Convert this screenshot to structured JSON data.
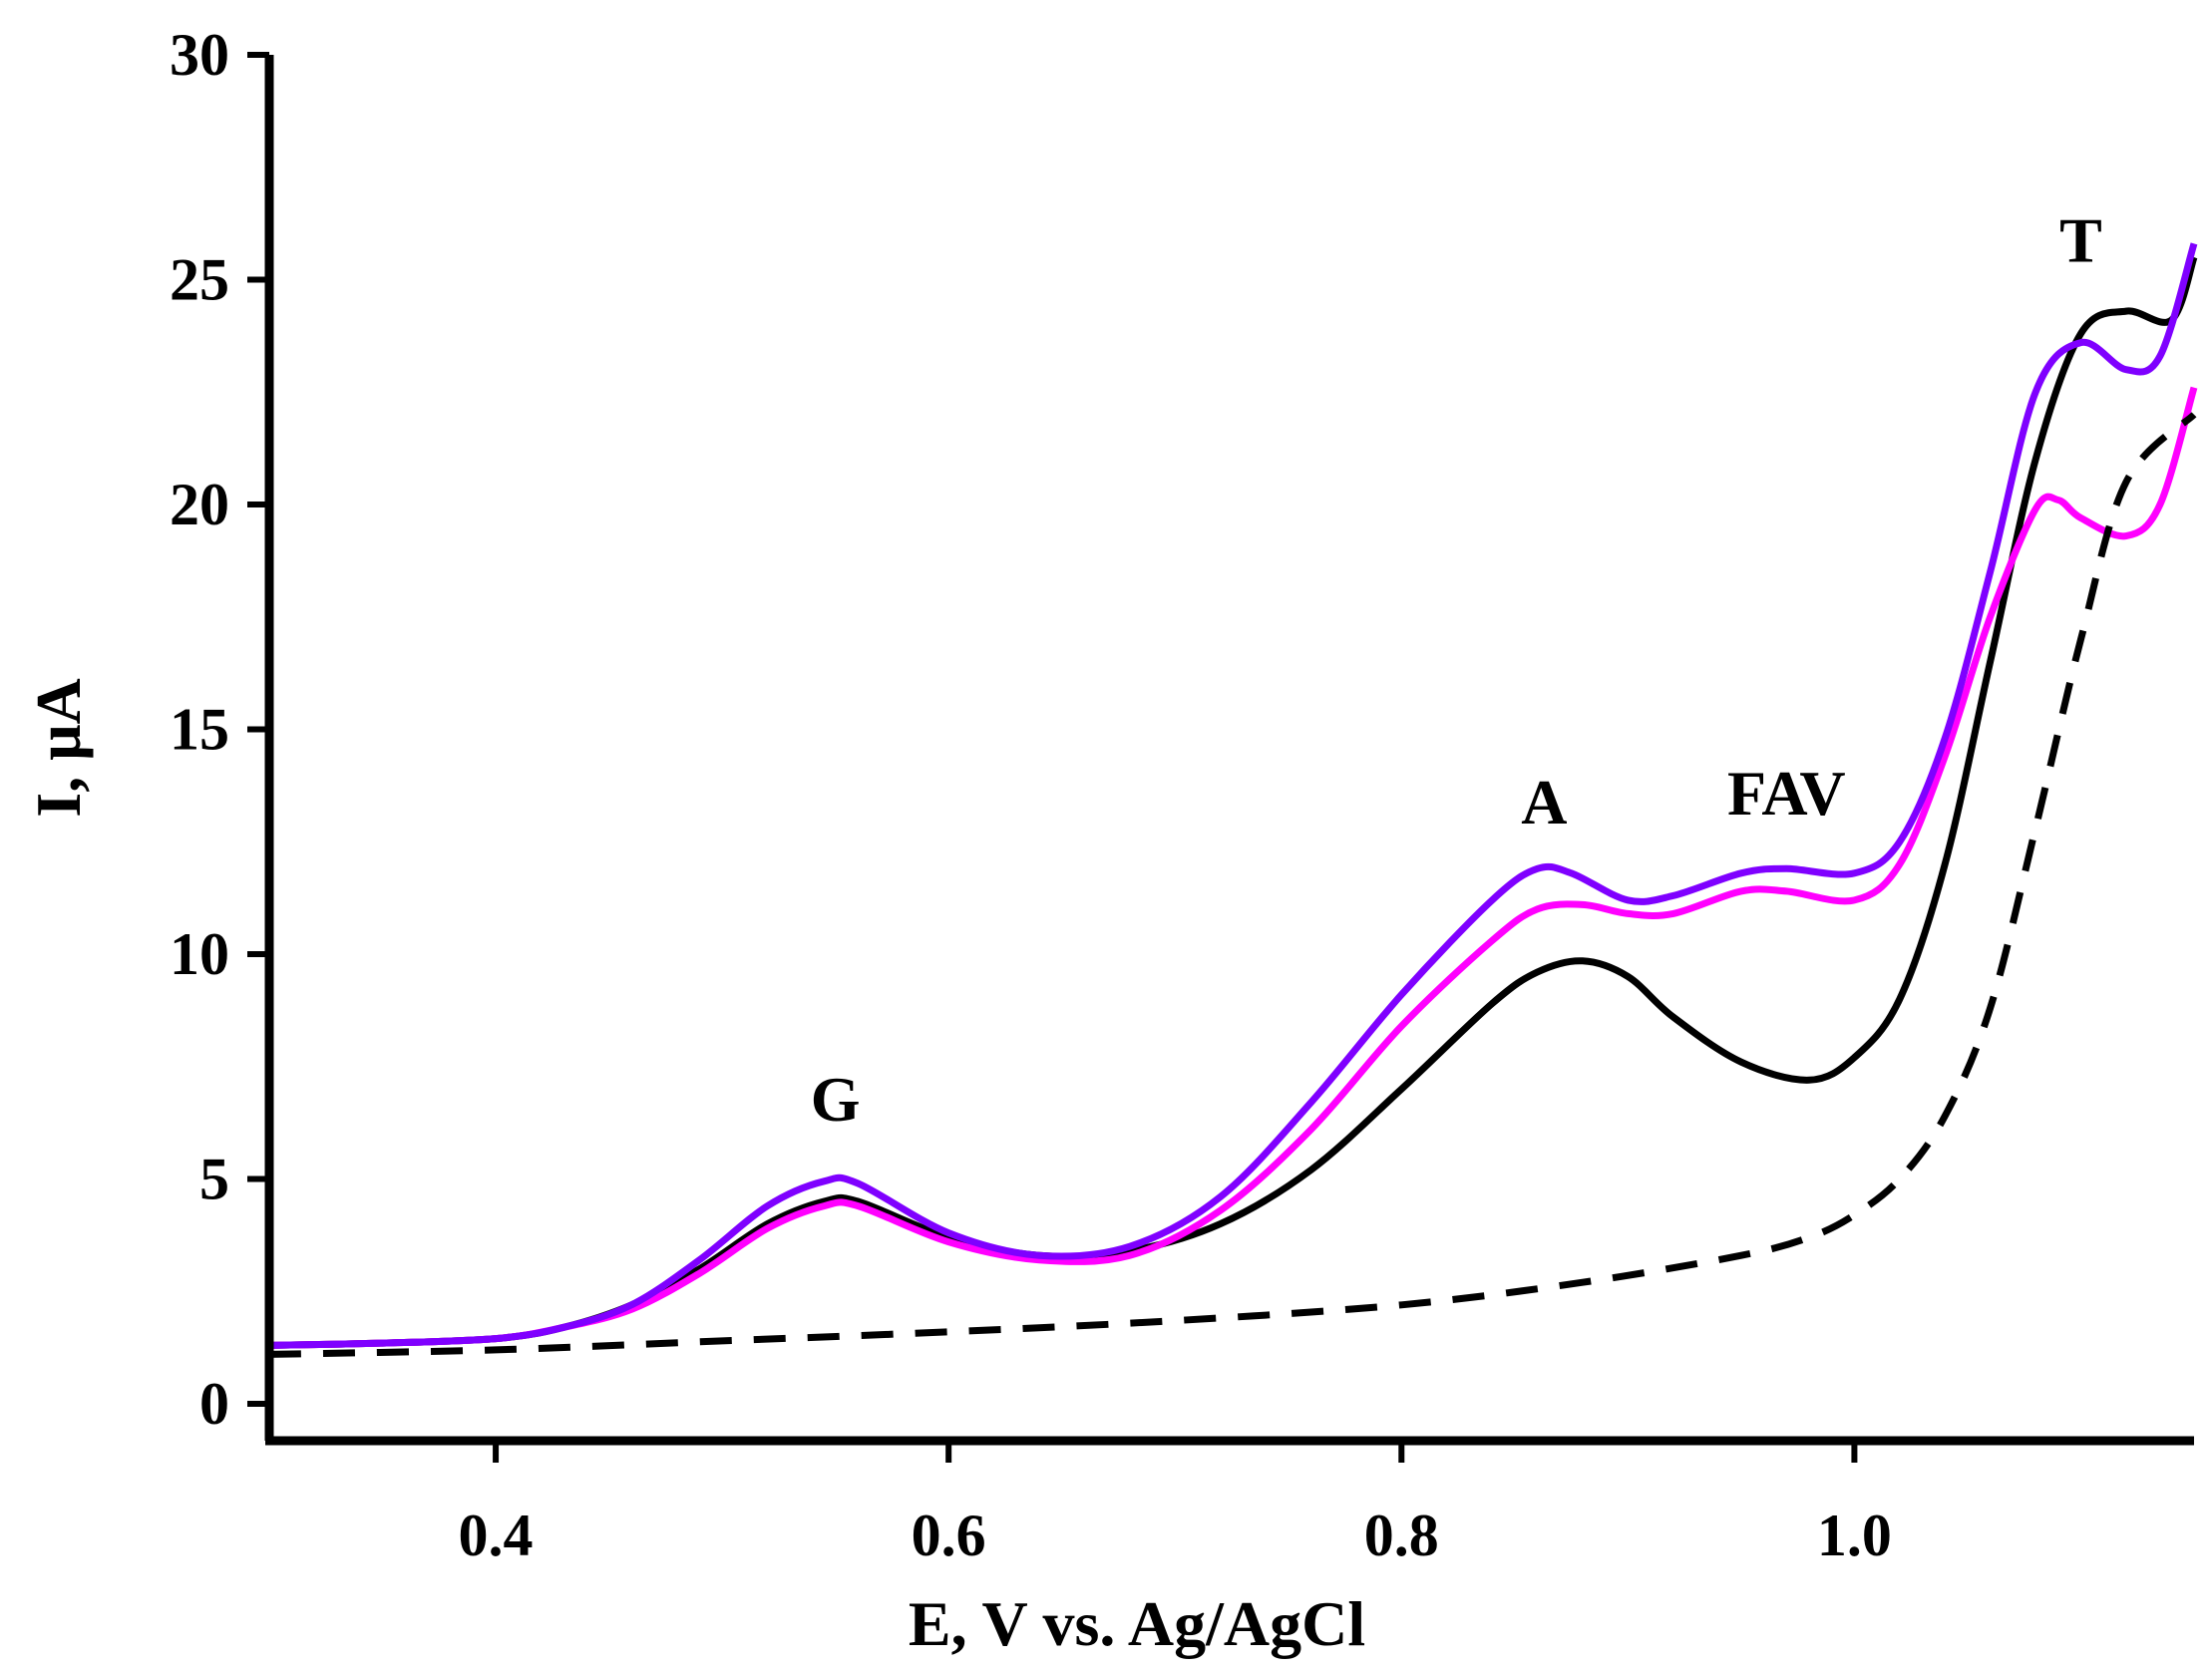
{
  "chart_data": {
    "type": "line",
    "title": "",
    "xlabel": "E, V vs. Ag/AgCl",
    "ylabel": "I, μA",
    "xlim": [
      0.3,
      1.15
    ],
    "ylim": [
      0,
      30
    ],
    "xticks": [
      0.4,
      0.6,
      0.8,
      1.0
    ],
    "xtick_labels": [
      "0.4",
      "0.6",
      "0.8",
      "1.0"
    ],
    "yticks": [
      0,
      5,
      10,
      15,
      20,
      25,
      30
    ],
    "ytick_labels": [
      "0",
      "5",
      "10",
      "15",
      "20",
      "25",
      "30"
    ],
    "grid": false,
    "series": [
      {
        "name": "black",
        "color": "#000000",
        "dashed": false,
        "points": [
          [
            0.3,
            1.3
          ],
          [
            0.35,
            1.35
          ],
          [
            0.4,
            1.45
          ],
          [
            0.43,
            1.7
          ],
          [
            0.46,
            2.2
          ],
          [
            0.49,
            3.0
          ],
          [
            0.52,
            4.0
          ],
          [
            0.545,
            4.5
          ],
          [
            0.56,
            4.5
          ],
          [
            0.6,
            3.7
          ],
          [
            0.64,
            3.3
          ],
          [
            0.68,
            3.4
          ],
          [
            0.72,
            4.0
          ],
          [
            0.76,
            5.2
          ],
          [
            0.8,
            7.0
          ],
          [
            0.84,
            8.9
          ],
          [
            0.86,
            9.6
          ],
          [
            0.88,
            9.85
          ],
          [
            0.9,
            9.5
          ],
          [
            0.92,
            8.6
          ],
          [
            0.95,
            7.6
          ],
          [
            0.98,
            7.2
          ],
          [
            1.0,
            7.7
          ],
          [
            1.02,
            9.0
          ],
          [
            1.04,
            12.0
          ],
          [
            1.06,
            16.5
          ],
          [
            1.08,
            21.0
          ],
          [
            1.1,
            23.8
          ],
          [
            1.12,
            24.3
          ],
          [
            1.14,
            24.1
          ],
          [
            1.15,
            25.5
          ]
        ]
      },
      {
        "name": "magenta",
        "color": "#ff00ff",
        "dashed": false,
        "points": [
          [
            0.3,
            1.3
          ],
          [
            0.35,
            1.35
          ],
          [
            0.4,
            1.45
          ],
          [
            0.43,
            1.7
          ],
          [
            0.46,
            2.1
          ],
          [
            0.49,
            2.9
          ],
          [
            0.52,
            3.9
          ],
          [
            0.545,
            4.4
          ],
          [
            0.56,
            4.4
          ],
          [
            0.6,
            3.6
          ],
          [
            0.64,
            3.2
          ],
          [
            0.68,
            3.3
          ],
          [
            0.72,
            4.3
          ],
          [
            0.76,
            6.1
          ],
          [
            0.8,
            8.4
          ],
          [
            0.84,
            10.3
          ],
          [
            0.86,
            11.0
          ],
          [
            0.88,
            11.1
          ],
          [
            0.9,
            10.9
          ],
          [
            0.92,
            10.9
          ],
          [
            0.95,
            11.4
          ],
          [
            0.97,
            11.4
          ],
          [
            1.0,
            11.2
          ],
          [
            1.02,
            12.0
          ],
          [
            1.04,
            14.4
          ],
          [
            1.06,
            17.5
          ],
          [
            1.08,
            19.9
          ],
          [
            1.09,
            20.1
          ],
          [
            1.1,
            19.7
          ],
          [
            1.12,
            19.3
          ],
          [
            1.135,
            20.0
          ],
          [
            1.15,
            22.6
          ]
        ]
      },
      {
        "name": "violet",
        "color": "#7f00ff",
        "dashed": false,
        "points": [
          [
            0.3,
            1.3
          ],
          [
            0.35,
            1.35
          ],
          [
            0.4,
            1.45
          ],
          [
            0.43,
            1.7
          ],
          [
            0.46,
            2.2
          ],
          [
            0.49,
            3.2
          ],
          [
            0.52,
            4.4
          ],
          [
            0.545,
            4.95
          ],
          [
            0.56,
            4.9
          ],
          [
            0.6,
            3.8
          ],
          [
            0.64,
            3.3
          ],
          [
            0.68,
            3.5
          ],
          [
            0.72,
            4.6
          ],
          [
            0.76,
            6.7
          ],
          [
            0.8,
            9.1
          ],
          [
            0.84,
            11.2
          ],
          [
            0.86,
            11.9
          ],
          [
            0.875,
            11.8
          ],
          [
            0.9,
            11.2
          ],
          [
            0.92,
            11.3
          ],
          [
            0.95,
            11.8
          ],
          [
            0.97,
            11.9
          ],
          [
            1.0,
            11.8
          ],
          [
            1.02,
            12.5
          ],
          [
            1.04,
            14.8
          ],
          [
            1.06,
            18.5
          ],
          [
            1.08,
            22.5
          ],
          [
            1.1,
            23.6
          ],
          [
            1.12,
            23.0
          ],
          [
            1.135,
            23.3
          ],
          [
            1.15,
            25.8
          ]
        ]
      },
      {
        "name": "blank",
        "color": "#000000",
        "dashed": true,
        "points": [
          [
            0.3,
            1.1
          ],
          [
            0.4,
            1.2
          ],
          [
            0.5,
            1.4
          ],
          [
            0.6,
            1.6
          ],
          [
            0.7,
            1.85
          ],
          [
            0.8,
            2.2
          ],
          [
            0.88,
            2.7
          ],
          [
            0.95,
            3.3
          ],
          [
            0.98,
            3.7
          ],
          [
            1.0,
            4.2
          ],
          [
            1.02,
            5.0
          ],
          [
            1.04,
            6.4
          ],
          [
            1.06,
            8.8
          ],
          [
            1.08,
            12.8
          ],
          [
            1.1,
            17.0
          ],
          [
            1.12,
            20.5
          ],
          [
            1.15,
            22.0
          ]
        ]
      }
    ],
    "annotations": [
      {
        "text": "G",
        "x": 0.55,
        "y": 6.3
      },
      {
        "text": "A",
        "x": 0.863,
        "y": 12.9
      },
      {
        "text": "FAV",
        "x": 0.97,
        "y": 13.1
      },
      {
        "text": "T",
        "x": 1.1,
        "y": 25.4
      }
    ]
  }
}
